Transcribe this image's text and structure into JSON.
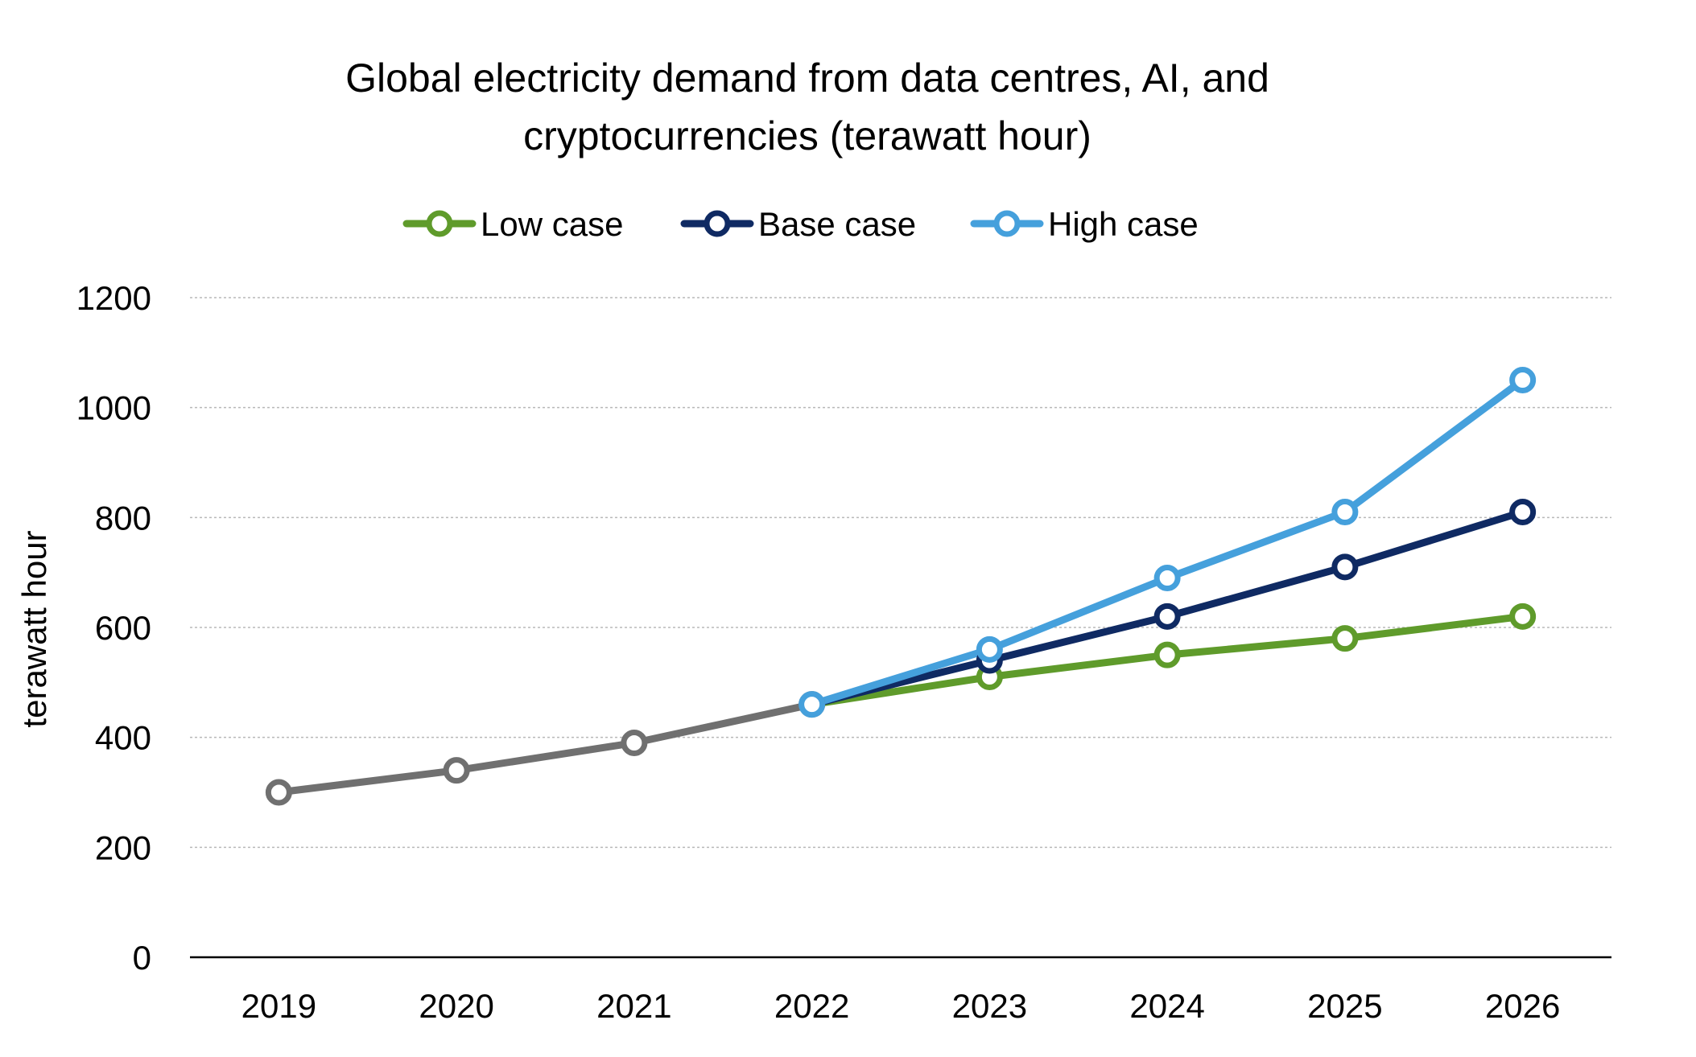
{
  "chart_data": {
    "type": "line",
    "title_lines": [
      "Global electricity demand from data centres, AI, and",
      "cryptocurrencies (terawatt hour)"
    ],
    "xlabel": "",
    "ylabel": "terawatt hour",
    "categories": [
      "2019",
      "2020",
      "2021",
      "2022",
      "2023",
      "2024",
      "2025",
      "2026"
    ],
    "ylim": [
      0,
      1200
    ],
    "yticks": [
      "0",
      "200",
      "400",
      "600",
      "800",
      "1000",
      "1200"
    ],
    "grid": "horizontal dotted",
    "legend_position": "top",
    "historical": {
      "color": "#707070",
      "x": [
        "2019",
        "2020",
        "2021",
        "2022"
      ],
      "values": [
        300,
        340,
        390,
        460
      ]
    },
    "series": [
      {
        "name": "Low case",
        "color": "#5f9b2b",
        "x": [
          "2022",
          "2023",
          "2024",
          "2025",
          "2026"
        ],
        "values": [
          460,
          510,
          550,
          580,
          620
        ]
      },
      {
        "name": "Base case",
        "color": "#0f2a63",
        "x": [
          "2022",
          "2023",
          "2024",
          "2025",
          "2026"
        ],
        "values": [
          460,
          540,
          620,
          710,
          810
        ]
      },
      {
        "name": "High case",
        "color": "#45a0dc",
        "x": [
          "2022",
          "2023",
          "2024",
          "2025",
          "2026"
        ],
        "values": [
          460,
          560,
          690,
          810,
          1050
        ]
      }
    ]
  }
}
